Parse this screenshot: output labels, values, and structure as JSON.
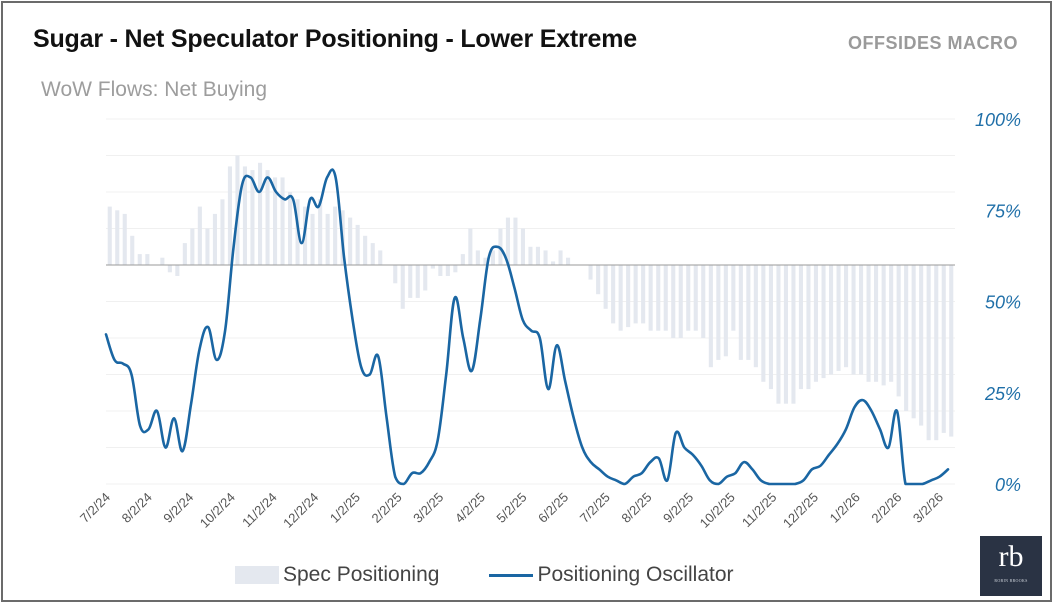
{
  "title": "Sugar - Net Speculator Positioning - Lower Extreme",
  "brand": "OFFSIDES MACRO",
  "subtitle": "WoW Flows: Net Buying",
  "logo": {
    "mark": "rb",
    "tagline": "ROBIN BROOKS"
  },
  "colors": {
    "bar": "#e4e8ef",
    "line": "#1a66a3",
    "axis_text": "#1f6fa8",
    "grid": "#f0f0f0"
  },
  "chart_data": {
    "type": "bar+line",
    "title": "Sugar - Net Speculator Positioning - Lower Extreme",
    "y_right": {
      "label": "",
      "range": [
        0,
        100
      ],
      "ticks": [
        "0%",
        "25%",
        "50%",
        "75%",
        "100%"
      ],
      "tick_values": [
        0,
        25,
        50,
        75,
        100
      ]
    },
    "bar_range": [
      -60,
      40
    ],
    "x_ticks": [
      "7/2/24",
      "8/2/24",
      "9/2/24",
      "10/2/24",
      "11/2/24",
      "12/2/24",
      "1/2/25",
      "2/2/25",
      "3/2/25",
      "4/2/25",
      "5/2/25",
      "6/2/25",
      "7/2/25",
      "8/2/25",
      "9/2/25",
      "10/2/25",
      "11/2/25",
      "12/2/25",
      "1/2/26",
      "2/2/26",
      "3/2/26"
    ],
    "series": [
      {
        "name": "Spec Positioning",
        "type": "bar",
        "values": [
          16,
          15,
          14,
          8,
          3,
          3,
          0,
          2,
          -2,
          -3,
          6,
          10,
          16,
          10,
          14,
          18,
          27,
          30,
          27,
          26,
          28,
          26,
          24,
          24,
          20,
          18,
          16,
          14,
          18,
          14,
          16,
          15,
          13,
          11,
          8,
          6,
          4,
          0,
          -5,
          -12,
          -9,
          -9,
          -7,
          -1,
          -3,
          -3,
          -2,
          3,
          10,
          4,
          2,
          4,
          10,
          13,
          13,
          10,
          5,
          5,
          4,
          1,
          4,
          2,
          0,
          0,
          -4,
          -8,
          -12,
          -16,
          -18,
          -17,
          -16,
          -16,
          -18,
          -18,
          -18,
          -20,
          -20,
          -18,
          -18,
          -20,
          -28,
          -26,
          -25,
          -18,
          -26,
          -26,
          -28,
          -32,
          -34,
          -38,
          -38,
          -38,
          -34,
          -34,
          -32,
          -31,
          -30,
          -29,
          -28,
          -30,
          -30,
          -32,
          -32,
          -33,
          -32,
          -36,
          -40,
          -42,
          -44,
          -48,
          -48,
          -46,
          -47
        ]
      },
      {
        "name": "Positioning Oscillator",
        "type": "line",
        "points": [
          [
            0,
            41
          ],
          [
            1,
            34
          ],
          [
            2,
            33
          ],
          [
            3,
            30
          ],
          [
            4,
            16
          ],
          [
            5,
            15
          ],
          [
            6,
            20
          ],
          [
            7,
            10
          ],
          [
            8,
            18
          ],
          [
            9,
            9
          ],
          [
            10,
            22
          ],
          [
            11,
            37
          ],
          [
            12,
            43
          ],
          [
            13,
            34
          ],
          [
            14,
            42
          ],
          [
            15,
            65
          ],
          [
            16,
            82
          ],
          [
            17,
            84
          ],
          [
            18,
            80
          ],
          [
            19,
            84
          ],
          [
            20,
            80
          ],
          [
            21,
            78
          ],
          [
            22,
            78
          ],
          [
            23,
            66
          ],
          [
            24,
            78
          ],
          [
            25,
            76
          ],
          [
            26,
            84
          ],
          [
            27,
            84
          ],
          [
            28,
            62
          ],
          [
            29,
            45
          ],
          [
            30,
            32
          ],
          [
            31,
            30
          ],
          [
            32,
            35
          ],
          [
            33,
            18
          ],
          [
            34,
            2
          ],
          [
            35,
            0
          ],
          [
            36,
            3
          ],
          [
            37,
            3
          ],
          [
            38,
            6
          ],
          [
            39,
            12
          ],
          [
            40,
            30
          ],
          [
            41,
            51
          ],
          [
            42,
            40
          ],
          [
            43,
            31
          ],
          [
            44,
            45
          ],
          [
            45,
            62
          ],
          [
            46,
            65
          ],
          [
            47,
            62
          ],
          [
            48,
            54
          ],
          [
            49,
            45
          ],
          [
            50,
            42
          ],
          [
            51,
            40
          ],
          [
            52,
            26
          ],
          [
            53,
            38
          ],
          [
            54,
            28
          ],
          [
            55,
            18
          ],
          [
            56,
            10
          ],
          [
            57,
            6
          ],
          [
            58,
            4
          ],
          [
            59,
            2
          ],
          [
            60,
            1
          ],
          [
            61,
            0
          ],
          [
            62,
            2
          ],
          [
            63,
            3
          ],
          [
            64,
            6
          ],
          [
            65,
            7
          ],
          [
            66,
            1
          ],
          [
            67,
            14
          ],
          [
            68,
            10
          ],
          [
            69,
            8
          ],
          [
            70,
            5
          ],
          [
            71,
            1
          ],
          [
            72,
            0
          ],
          [
            73,
            2
          ],
          [
            74,
            3
          ],
          [
            75,
            6
          ],
          [
            76,
            4
          ],
          [
            77,
            1
          ],
          [
            78,
            0
          ],
          [
            79,
            0
          ],
          [
            80,
            0
          ],
          [
            81,
            0
          ],
          [
            82,
            1
          ],
          [
            83,
            4
          ],
          [
            84,
            5
          ],
          [
            85,
            8
          ],
          [
            86,
            11
          ],
          [
            87,
            15
          ],
          [
            88,
            21
          ],
          [
            89,
            23
          ],
          [
            90,
            20
          ],
          [
            91,
            15
          ],
          [
            92,
            10
          ],
          [
            93,
            20
          ],
          [
            94,
            0
          ],
          [
            95,
            0
          ],
          [
            96,
            0
          ],
          [
            97,
            1
          ],
          [
            98,
            2
          ],
          [
            99,
            4
          ]
        ]
      }
    ],
    "legend": [
      "Spec Positioning",
      "Positioning Oscillator"
    ],
    "legend_position": "bottom"
  }
}
